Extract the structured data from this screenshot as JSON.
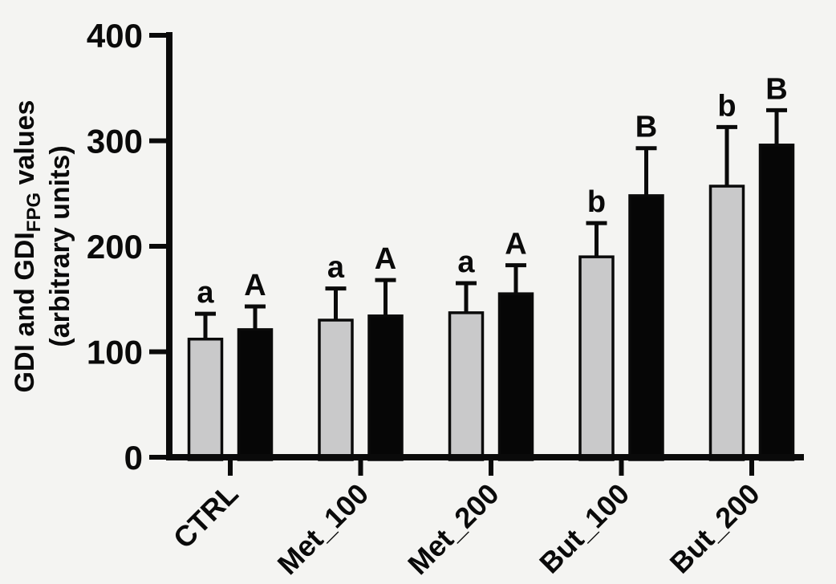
{
  "figure": {
    "kind": "grouped-bar-chart",
    "background": "#f4f4f2"
  },
  "colors": {
    "bar_gray": "#c9c9ca",
    "bar_black": "#060606",
    "axis": "#0a0a0a",
    "background": "#f4f4f2"
  },
  "chart_data": {
    "type": "bar",
    "title": "",
    "xlabel": "",
    "ylabel": "GDI and GDI_FPG values (arbitrary units)",
    "ylabel_parts": {
      "line1_pre": "GDI and GDI",
      "line1_sub": "FPG",
      "line1_post": " values",
      "line2": "(arbitrary units)"
    },
    "categories": [
      "CTRL",
      "Met_100",
      "Met_200",
      "But_100",
      "But_200"
    ],
    "series": [
      {
        "name": "GDI",
        "fill": "#c9c9ca",
        "values": [
          112,
          130,
          137,
          190,
          257
        ],
        "errors_plus": [
          24,
          30,
          28,
          32,
          56
        ],
        "sig_letters": [
          "a",
          "a",
          "a",
          "b",
          "b"
        ]
      },
      {
        "name": "GDI_FPG",
        "fill": "#060606",
        "values": [
          121,
          134,
          155,
          248,
          296
        ],
        "errors_plus": [
          22,
          34,
          27,
          45,
          33
        ],
        "sig_letters": [
          "A",
          "A",
          "A",
          "B",
          "B"
        ]
      }
    ],
    "ylim": [
      0,
      400
    ],
    "yticks": [
      0,
      100,
      200,
      300,
      400
    ],
    "grid": false,
    "legend": "none",
    "error_bars": "upper SD only, capped",
    "x_tick_label_rotation_deg": -45
  }
}
